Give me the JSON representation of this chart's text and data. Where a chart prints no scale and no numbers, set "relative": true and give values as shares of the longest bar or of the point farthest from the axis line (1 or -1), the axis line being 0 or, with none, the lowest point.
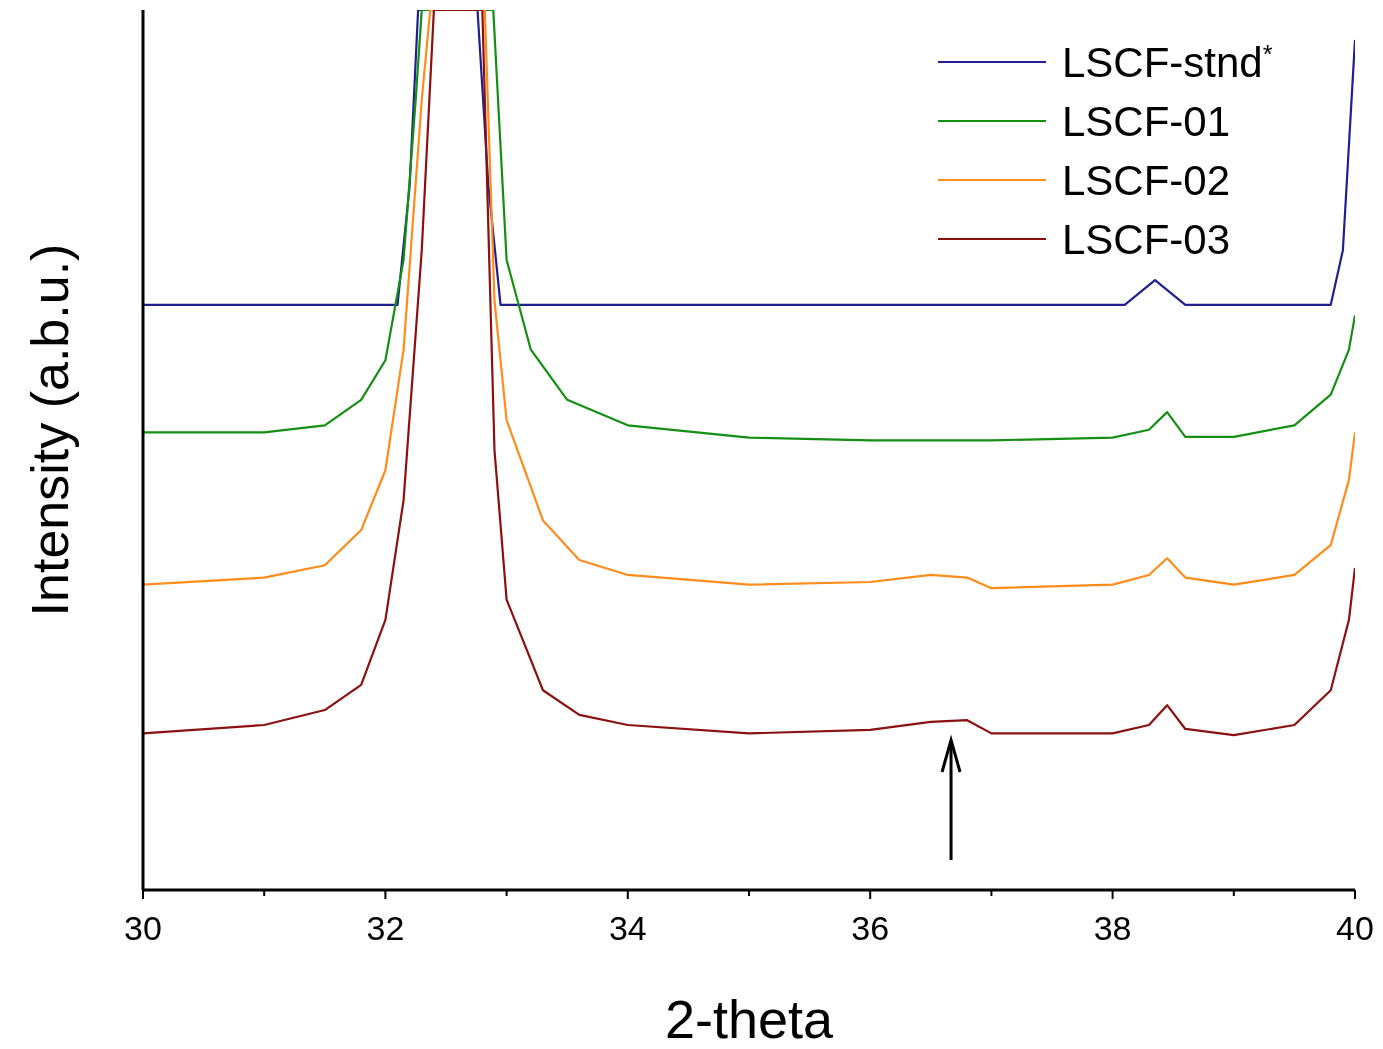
{
  "chart_data": {
    "type": "line",
    "relative": true,
    "xlabel": "2-theta",
    "ylabel": "Intensity (a.b.u.)",
    "xlim": [
      30,
      40
    ],
    "xticks": [
      30,
      {
        "value": 31,
        "label": null
      },
      32,
      {
        "value": 33,
        "label": null
      },
      34,
      {
        "value": 35,
        "label": null
      },
      36,
      {
        "value": 37,
        "label": null
      },
      38,
      {
        "value": 39,
        "label": null
      },
      40
    ],
    "grid": false,
    "legend": "top right",
    "marker": "none",
    "line_style": "solid",
    "series": [
      {
        "name": "LSCF-stnd$^{*}$",
        "color": "#1f1f8f",
        "x": [
          30,
          32.1,
          32.2,
          32.27,
          32.76,
          32.85,
          32.95,
          38.1,
          38.35,
          38.6,
          39.8,
          39.9,
          40
        ],
        "values": [
          0.665,
          0.665,
          0.8,
          1,
          1,
          0.8,
          0.665,
          0.665,
          0.693,
          0.665,
          0.665,
          0.727,
          0.966
        ]
      },
      {
        "name": "LSCF-01",
        "color": "#138f13",
        "x": [
          30,
          31,
          31.5,
          31.8,
          32,
          32.15,
          32.25,
          32.3,
          32.89,
          33,
          33.2,
          33.5,
          34,
          35,
          36,
          37,
          38,
          38.3,
          38.45,
          38.6,
          39,
          39.5,
          39.8,
          39.95,
          40
        ],
        "values": [
          0.52,
          0.52,
          0.528,
          0.557,
          0.602,
          0.716,
          0.898,
          1,
          1,
          0.716,
          0.614,
          0.557,
          0.528,
          0.514,
          0.511,
          0.511,
          0.514,
          0.523,
          0.543,
          0.515,
          0.515,
          0.528,
          0.563,
          0.614,
          0.653
        ]
      },
      {
        "name": "LSCF-02",
        "color": "#ff8c1a",
        "x": [
          30,
          31,
          31.5,
          31.8,
          32,
          32.15,
          32.3,
          32.37,
          32.82,
          32.9,
          33,
          33.3,
          33.6,
          34,
          35,
          36,
          36.5,
          36.8,
          37,
          38,
          38.3,
          38.45,
          38.6,
          39,
          39.5,
          39.8,
          39.95,
          40
        ],
        "values": [
          0.347,
          0.355,
          0.369,
          0.409,
          0.477,
          0.614,
          0.898,
          1,
          1,
          0.67,
          0.534,
          0.42,
          0.375,
          0.358,
          0.347,
          0.35,
          0.358,
          0.355,
          0.343,
          0.347,
          0.358,
          0.377,
          0.355,
          0.347,
          0.358,
          0.392,
          0.466,
          0.52
        ]
      },
      {
        "name": "LSCF-03",
        "color": "#8b1010",
        "x": [
          30,
          31,
          31.5,
          31.8,
          32,
          32.15,
          32.3,
          32.4,
          32.8,
          32.9,
          33,
          33.3,
          33.6,
          34,
          35,
          36,
          36.5,
          36.8,
          37,
          38,
          38.3,
          38.45,
          38.6,
          39,
          39.5,
          39.8,
          39.95,
          40
        ],
        "values": [
          0.178,
          0.1875,
          0.2045,
          0.233,
          0.307,
          0.443,
          0.727,
          1,
          1,
          0.5,
          0.33,
          0.227,
          0.199,
          0.1875,
          0.178,
          0.182,
          0.191,
          0.193,
          0.178,
          0.178,
          0.1875,
          0.21,
          0.183,
          0.176,
          0.1875,
          0.227,
          0.307,
          0.366
        ]
      }
    ]
  }
}
